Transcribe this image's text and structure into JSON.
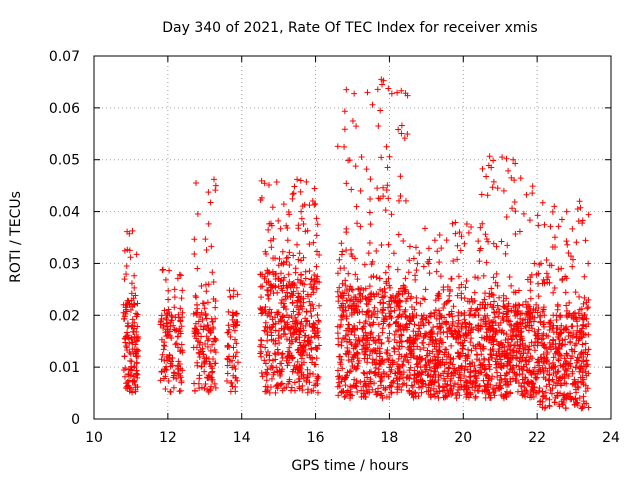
{
  "chart_data": {
    "type": "scatter",
    "title": "Day 340 of 2021, Rate Of TEC Index for receiver xmis",
    "xlabel": "GPS time / hours",
    "ylabel": "ROTI / TECUs",
    "xlim": [
      10,
      24
    ],
    "ylim": [
      0,
      0.07
    ],
    "xticks": [
      10,
      12,
      14,
      16,
      18,
      20,
      22,
      24
    ],
    "yticks": [
      0,
      0.01,
      0.02,
      0.03,
      0.04,
      0.05,
      0.06,
      0.07
    ],
    "xtick_labels": [
      "10",
      "12",
      "14",
      "16",
      "18",
      "20",
      "22",
      "24"
    ],
    "ytick_labels": [
      "0",
      "0.01",
      "0.02",
      "0.03",
      "0.04",
      "0.05",
      "0.06",
      "0.07"
    ],
    "grid": true,
    "marker": "+",
    "marker_color": "#ff0000",
    "clusters": [
      {
        "x": [
          10.8,
          11.2
        ],
        "base": [
          0.005,
          0.022
        ],
        "max": 0.037,
        "n": 140
      },
      {
        "x": [
          11.8,
          12.4
        ],
        "base": [
          0.005,
          0.02
        ],
        "max": 0.029,
        "n": 130
      },
      {
        "x": [
          12.7,
          13.3
        ],
        "base": [
          0.005,
          0.022
        ],
        "max": 0.046,
        "n": 150
      },
      {
        "x": [
          13.6,
          13.9
        ],
        "base": [
          0.005,
          0.02
        ],
        "max": 0.027,
        "n": 60
      },
      {
        "x": [
          14.5,
          16.1
        ],
        "base": [
          0.005,
          0.027
        ],
        "max": 0.046,
        "n": 520
      },
      {
        "x": [
          16.6,
          18.5
        ],
        "base": [
          0.004,
          0.025
        ],
        "max": 0.066,
        "n": 620
      },
      {
        "x": [
          18.5,
          20.5
        ],
        "base": [
          0.004,
          0.02
        ],
        "max": 0.038,
        "n": 620
      },
      {
        "x": [
          20.5,
          22.0
        ],
        "base": [
          0.004,
          0.022
        ],
        "max": 0.051,
        "n": 520
      },
      {
        "x": [
          22.0,
          23.4
        ],
        "base": [
          0.002,
          0.02
        ],
        "max": 0.042,
        "n": 440
      }
    ],
    "notable_points": [
      {
        "x": 17.78,
        "y": 0.0655
      },
      {
        "x": 17.8,
        "y": 0.0645
      },
      {
        "x": 17.75,
        "y": 0.0595
      },
      {
        "x": 17.7,
        "y": 0.0565
      },
      {
        "x": 17.92,
        "y": 0.0525
      },
      {
        "x": 17.95,
        "y": 0.0485
      },
      {
        "x": 21.05,
        "y": 0.0505
      },
      {
        "x": 21.35,
        "y": 0.05
      },
      {
        "x": 21.3,
        "y": 0.0465
      },
      {
        "x": 13.25,
        "y": 0.0462
      },
      {
        "x": 13.3,
        "y": 0.045
      },
      {
        "x": 15.5,
        "y": 0.0462
      },
      {
        "x": 15.6,
        "y": 0.046
      },
      {
        "x": 14.95,
        "y": 0.0457
      },
      {
        "x": 21.1,
        "y": 0.044
      },
      {
        "x": 23.15,
        "y": 0.042
      },
      {
        "x": 23.1,
        "y": 0.0405
      },
      {
        "x": 22.8,
        "y": 0.04
      },
      {
        "x": 18.3,
        "y": 0.043
      }
    ]
  }
}
